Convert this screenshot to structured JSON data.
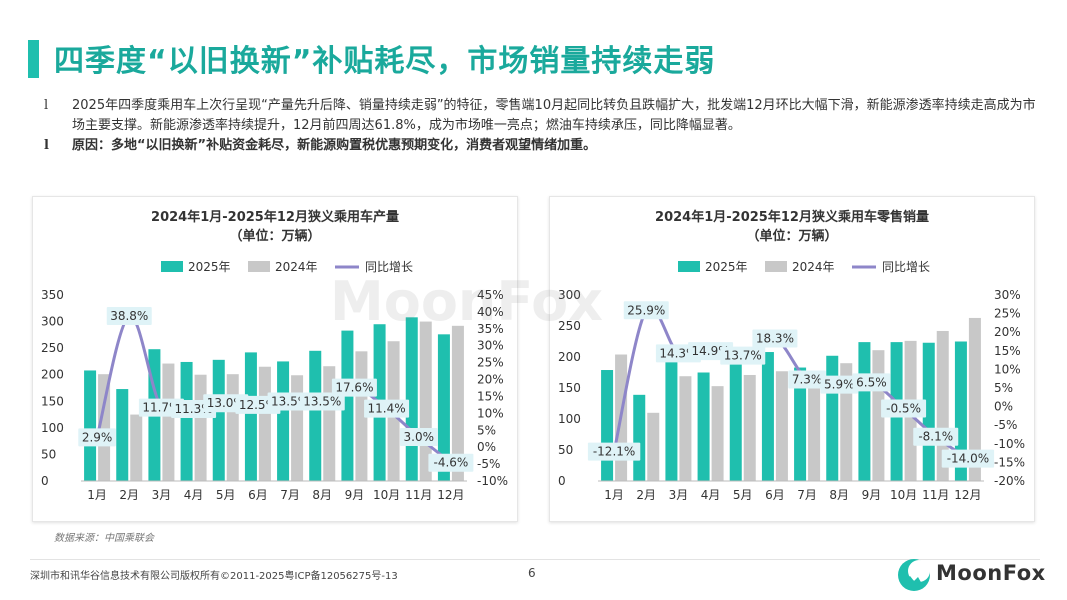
{
  "page": {
    "title": "四季度“以旧换新”补贴耗尽，市场销量持续走弱",
    "bullet_marker": "l",
    "bullets": [
      "2025年四季度乘用车上次行呈现“产量先升后降、销量持续走弱”的特征，零售端10月起同比转负且跌幅扩大，批发端12月环比大幅下滑，新能源渗透率持续走高成为市场主要支撑。新能源渗透率持续提升，12月前四周达61.8%，成为市场唯一亮点；燃油车持续承压，同比降幅显著。",
      "原因：多地“以旧换新”补贴资金耗尽，新能源购置税优惠预期变化，消费者观望情绪加重。"
    ],
    "source": "数据来源：中国乘联会",
    "footer": "深圳市和讯华谷信息技术有限公司版权所有©2011-2025粤ICP备12056275号-13",
    "page_number": "6",
    "logo_text": "MoonFox",
    "watermark": "MoonFox",
    "colors": {
      "primary": "#1fbfae",
      "title": "#1aa99c",
      "bar2024": "#c8c8c8",
      "line": "#8e86c9"
    }
  },
  "chart_data": [
    {
      "type": "bar",
      "title": "2024年1月-2025年12月狭义乘用车产量",
      "subtitle": "（单位：万辆）",
      "categories": [
        "1月",
        "2月",
        "3月",
        "4月",
        "5月",
        "6月",
        "7月",
        "8月",
        "9月",
        "10月",
        "11月",
        "12月"
      ],
      "series": [
        {
          "name": "2025年",
          "type": "bar",
          "axis": "left",
          "values": [
            208,
            173,
            248,
            224,
            228,
            242,
            225,
            245,
            283,
            295,
            308,
            276
          ]
        },
        {
          "name": "2024年",
          "type": "bar",
          "axis": "left",
          "values": [
            201,
            125,
            221,
            200,
            201,
            215,
            199,
            216,
            244,
            263,
            300,
            292
          ]
        },
        {
          "name": "同比增长",
          "type": "line",
          "axis": "right",
          "values": [
            2.9,
            38.8,
            11.7,
            11.3,
            13.0,
            12.5,
            13.5,
            13.5,
            17.6,
            11.4,
            3.0,
            -4.6
          ],
          "labels": [
            "2.9%",
            "38.8%",
            "11.7%",
            "11.3%",
            "13.0%",
            "12.5%",
            "13.5%",
            "13.5%",
            "17.6%",
            "11.4%",
            "3.0%",
            "-4.6%"
          ]
        }
      ],
      "y_left": {
        "min": 0,
        "max": 350,
        "ticks": [
          "0",
          "50",
          "100",
          "150",
          "200",
          "250",
          "300",
          "350"
        ]
      },
      "y_right": {
        "min": -10,
        "max": 45,
        "ticks": [
          "-10%",
          "-5%",
          "0%",
          "5%",
          "10%",
          "15%",
          "20%",
          "25%",
          "30%",
          "35%",
          "40%",
          "45%"
        ]
      },
      "legend": "top"
    },
    {
      "type": "bar",
      "title": "2024年1月-2025年12月狭义乘用车零售销量",
      "subtitle": "（单位：万辆）",
      "categories": [
        "1月",
        "2月",
        "3月",
        "4月",
        "5月",
        "6月",
        "7月",
        "8月",
        "9月",
        "10月",
        "11月",
        "12月"
      ],
      "series": [
        {
          "name": "2025年",
          "type": "bar",
          "axis": "left",
          "values": [
            179,
            139,
            193,
            175,
            193,
            208,
            183,
            202,
            224,
            224,
            223,
            225
          ]
        },
        {
          "name": "2024年",
          "type": "bar",
          "axis": "left",
          "values": [
            204,
            110,
            169,
            153,
            171,
            177,
            172,
            190,
            211,
            226,
            242,
            263
          ]
        },
        {
          "name": "同比增长",
          "type": "line",
          "axis": "right",
          "values": [
            -12.1,
            25.9,
            14.3,
            14.9,
            13.7,
            18.3,
            7.3,
            5.9,
            6.5,
            -0.5,
            -8.1,
            -14.0
          ],
          "labels": [
            "-12.1%",
            "25.9%",
            "14.3%",
            "14.9%",
            "13.7%",
            "18.3%",
            "7.3%",
            "5.9%",
            "6.5%",
            "-0.5%",
            "-8.1%",
            "-14.0%"
          ]
        }
      ],
      "y_left": {
        "min": 0,
        "max": 300,
        "ticks": [
          "0",
          "50",
          "100",
          "150",
          "200",
          "250",
          "300"
        ]
      },
      "y_right": {
        "min": -20,
        "max": 30,
        "ticks": [
          "-20%",
          "-15%",
          "-10%",
          "-5%",
          "0%",
          "5%",
          "10%",
          "15%",
          "20%",
          "25%",
          "30%"
        ]
      },
      "legend": "top"
    }
  ]
}
